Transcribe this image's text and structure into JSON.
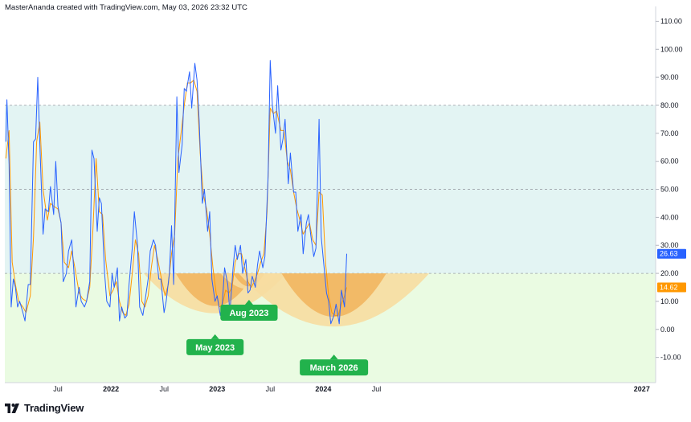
{
  "header": {
    "text": "MasterAnanda created with TradingView.com, May 03, 2026 23:32 UTC"
  },
  "branding": {
    "logo_text": "TradingView"
  },
  "colors": {
    "blue_line": "#2962ff",
    "orange_line": "#ff9800",
    "zone_band": "#e3f4f3",
    "low_zone": "#eafbe2",
    "bowl_outer": "#f7dda1",
    "bowl_inner": "#f1b35c",
    "badge_green": "#22b24c"
  },
  "chart_data": {
    "type": "line",
    "y_axis": {
      "ticks": [
        "110.00",
        "100.00",
        "90.00",
        "80.00",
        "70.00",
        "60.00",
        "50.00",
        "40.00",
        "30.00",
        "20.00",
        "10.00",
        "0.00",
        "-10.00"
      ],
      "ylim": [
        -19,
        113
      ]
    },
    "x_axis": {
      "ticks": [
        {
          "label": "Jul",
          "t": 2021.5,
          "bold": false
        },
        {
          "label": "2022",
          "t": 2022.0,
          "bold": true
        },
        {
          "label": "Jul",
          "t": 2022.5,
          "bold": false
        },
        {
          "label": "2023",
          "t": 2023.0,
          "bold": true
        },
        {
          "label": "Jul",
          "t": 2023.5,
          "bold": false
        },
        {
          "label": "2024",
          "t": 2024.0,
          "bold": true
        },
        {
          "label": "Jul",
          "t": 2024.5,
          "bold": false
        },
        {
          "label": "2027",
          "t": 2027.0,
          "bold": true
        }
      ]
    },
    "levels": [
      80,
      50,
      20
    ],
    "series": [
      {
        "color": "#2962ff",
        "last_value": "26.63",
        "points": [
          [
            2021.01,
            67
          ],
          [
            2021.02,
            82
          ],
          [
            2021.04,
            59
          ],
          [
            2021.06,
            8
          ],
          [
            2021.08,
            18
          ],
          [
            2021.1,
            15
          ],
          [
            2021.12,
            8
          ],
          [
            2021.14,
            10
          ],
          [
            2021.17,
            6
          ],
          [
            2021.19,
            3
          ],
          [
            2021.22,
            16
          ],
          [
            2021.24,
            16
          ],
          [
            2021.27,
            67
          ],
          [
            2021.29,
            68
          ],
          [
            2021.31,
            90
          ],
          [
            2021.33,
            66
          ],
          [
            2021.36,
            34
          ],
          [
            2021.38,
            43
          ],
          [
            2021.41,
            42
          ],
          [
            2021.43,
            51
          ],
          [
            2021.46,
            41
          ],
          [
            2021.48,
            60
          ],
          [
            2021.5,
            44
          ],
          [
            2021.53,
            38
          ],
          [
            2021.55,
            17
          ],
          [
            2021.58,
            20
          ],
          [
            2021.6,
            28
          ],
          [
            2021.63,
            32
          ],
          [
            2021.65,
            21
          ],
          [
            2021.67,
            8
          ],
          [
            2021.7,
            15
          ],
          [
            2021.72,
            10
          ],
          [
            2021.75,
            8
          ],
          [
            2021.77,
            10
          ],
          [
            2021.8,
            17
          ],
          [
            2021.82,
            64
          ],
          [
            2021.84,
            61
          ],
          [
            2021.87,
            35
          ],
          [
            2021.89,
            47
          ],
          [
            2021.91,
            45
          ],
          [
            2021.94,
            20
          ],
          [
            2021.96,
            10
          ],
          [
            2021.99,
            8
          ],
          [
            2022.01,
            20
          ],
          [
            2022.03,
            15
          ],
          [
            2022.06,
            22
          ],
          [
            2022.08,
            3
          ],
          [
            2022.1,
            8
          ],
          [
            2022.13,
            4
          ],
          [
            2022.15,
            5
          ],
          [
            2022.17,
            16
          ],
          [
            2022.2,
            29
          ],
          [
            2022.22,
            42
          ],
          [
            2022.25,
            30
          ],
          [
            2022.27,
            8
          ],
          [
            2022.3,
            5
          ],
          [
            2022.32,
            10
          ],
          [
            2022.35,
            18
          ],
          [
            2022.37,
            28
          ],
          [
            2022.4,
            32
          ],
          [
            2022.42,
            30
          ],
          [
            2022.45,
            18
          ],
          [
            2022.47,
            18
          ],
          [
            2022.5,
            6
          ],
          [
            2022.52,
            10
          ],
          [
            2022.55,
            20
          ],
          [
            2022.57,
            37
          ],
          [
            2022.59,
            16
          ],
          [
            2022.62,
            83
          ],
          [
            2022.64,
            56
          ],
          [
            2022.67,
            66
          ],
          [
            2022.69,
            86
          ],
          [
            2022.71,
            85
          ],
          [
            2022.74,
            92
          ],
          [
            2022.76,
            79
          ],
          [
            2022.79,
            95
          ],
          [
            2022.81,
            89
          ],
          [
            2022.83,
            75
          ],
          [
            2022.86,
            45
          ],
          [
            2022.88,
            50
          ],
          [
            2022.91,
            35
          ],
          [
            2022.93,
            42
          ],
          [
            2022.95,
            18
          ],
          [
            2022.98,
            10
          ],
          [
            2023.0,
            12
          ],
          [
            2023.03,
            5
          ],
          [
            2023.05,
            10
          ],
          [
            2023.07,
            22
          ],
          [
            2023.1,
            16
          ],
          [
            2023.12,
            6
          ],
          [
            2023.15,
            22
          ],
          [
            2023.17,
            30
          ],
          [
            2023.19,
            25
          ],
          [
            2023.22,
            30
          ],
          [
            2023.24,
            20
          ],
          [
            2023.27,
            25
          ],
          [
            2023.29,
            13
          ],
          [
            2023.31,
            14
          ],
          [
            2023.33,
            19
          ],
          [
            2023.36,
            15
          ],
          [
            2023.38,
            23
          ],
          [
            2023.4,
            28
          ],
          [
            2023.43,
            22
          ],
          [
            2023.45,
            26
          ],
          [
            2023.48,
            55
          ],
          [
            2023.5,
            96
          ],
          [
            2023.52,
            80
          ],
          [
            2023.55,
            70
          ],
          [
            2023.57,
            87
          ],
          [
            2023.6,
            64
          ],
          [
            2023.62,
            68
          ],
          [
            2023.64,
            75
          ],
          [
            2023.67,
            52
          ],
          [
            2023.69,
            63
          ],
          [
            2023.72,
            49
          ],
          [
            2023.74,
            49
          ],
          [
            2023.76,
            35
          ],
          [
            2023.79,
            41
          ],
          [
            2023.81,
            27
          ],
          [
            2023.84,
            38
          ],
          [
            2023.86,
            41
          ],
          [
            2023.88,
            34
          ],
          [
            2023.91,
            26
          ],
          [
            2023.93,
            29
          ],
          [
            2023.96,
            75
          ],
          [
            2023.98,
            33
          ],
          [
            2024.0,
            25
          ],
          [
            2024.03,
            13
          ],
          [
            2024.05,
            10
          ],
          [
            2024.07,
            2
          ],
          [
            2024.1,
            5
          ],
          [
            2024.12,
            9
          ],
          [
            2024.15,
            2
          ],
          [
            2024.17,
            14
          ],
          [
            2024.2,
            8
          ],
          [
            2024.22,
            27
          ]
        ]
      },
      {
        "color": "#ff9800",
        "last_value": "14.62",
        "points": [
          [
            2021.01,
            61
          ],
          [
            2021.04,
            71
          ],
          [
            2021.07,
            24
          ],
          [
            2021.1,
            16
          ],
          [
            2021.13,
            10
          ],
          [
            2021.17,
            8
          ],
          [
            2021.2,
            6
          ],
          [
            2021.24,
            12
          ],
          [
            2021.27,
            33
          ],
          [
            2021.3,
            67
          ],
          [
            2021.33,
            74
          ],
          [
            2021.36,
            50
          ],
          [
            2021.4,
            39
          ],
          [
            2021.43,
            45
          ],
          [
            2021.46,
            44
          ],
          [
            2021.5,
            43
          ],
          [
            2021.53,
            38
          ],
          [
            2021.56,
            24
          ],
          [
            2021.6,
            22
          ],
          [
            2021.63,
            28
          ],
          [
            2021.66,
            22
          ],
          [
            2021.7,
            13
          ],
          [
            2021.73,
            11
          ],
          [
            2021.77,
            10
          ],
          [
            2021.8,
            15
          ],
          [
            2021.83,
            36
          ],
          [
            2021.86,
            61
          ],
          [
            2021.89,
            42
          ],
          [
            2021.92,
            41
          ],
          [
            2021.95,
            25
          ],
          [
            2021.99,
            12
          ],
          [
            2022.02,
            14
          ],
          [
            2022.05,
            17
          ],
          [
            2022.08,
            10
          ],
          [
            2022.11,
            6
          ],
          [
            2022.14,
            5
          ],
          [
            2022.17,
            9
          ],
          [
            2022.2,
            20
          ],
          [
            2022.23,
            32
          ],
          [
            2022.26,
            27
          ],
          [
            2022.29,
            10
          ],
          [
            2022.32,
            8
          ],
          [
            2022.35,
            12
          ],
          [
            2022.38,
            22
          ],
          [
            2022.41,
            30
          ],
          [
            2022.44,
            25
          ],
          [
            2022.48,
            17
          ],
          [
            2022.51,
            12
          ],
          [
            2022.54,
            16
          ],
          [
            2022.57,
            27
          ],
          [
            2022.6,
            34
          ],
          [
            2022.63,
            61
          ],
          [
            2022.66,
            70
          ],
          [
            2022.69,
            80
          ],
          [
            2022.72,
            88
          ],
          [
            2022.75,
            88
          ],
          [
            2022.78,
            89
          ],
          [
            2022.81,
            85
          ],
          [
            2022.84,
            63
          ],
          [
            2022.87,
            48
          ],
          [
            2022.9,
            43
          ],
          [
            2022.93,
            34
          ],
          [
            2022.96,
            22
          ],
          [
            2022.99,
            13
          ],
          [
            2023.02,
            8
          ],
          [
            2023.05,
            9
          ],
          [
            2023.08,
            14
          ],
          [
            2023.11,
            13
          ],
          [
            2023.14,
            15
          ],
          [
            2023.17,
            24
          ],
          [
            2023.2,
            27
          ],
          [
            2023.23,
            27
          ],
          [
            2023.26,
            22
          ],
          [
            2023.29,
            17
          ],
          [
            2023.32,
            15
          ],
          [
            2023.35,
            17
          ],
          [
            2023.38,
            20
          ],
          [
            2023.41,
            24
          ],
          [
            2023.44,
            27
          ],
          [
            2023.47,
            42
          ],
          [
            2023.5,
            79
          ],
          [
            2023.53,
            77
          ],
          [
            2023.56,
            78
          ],
          [
            2023.6,
            71
          ],
          [
            2023.63,
            71
          ],
          [
            2023.66,
            60
          ],
          [
            2023.69,
            57
          ],
          [
            2023.72,
            49
          ],
          [
            2023.75,
            43
          ],
          [
            2023.78,
            39
          ],
          [
            2023.81,
            34
          ],
          [
            2023.84,
            36
          ],
          [
            2023.87,
            38
          ],
          [
            2023.9,
            32
          ],
          [
            2023.93,
            30
          ],
          [
            2023.96,
            49
          ],
          [
            2023.99,
            48
          ],
          [
            2024.02,
            24
          ],
          [
            2024.05,
            12
          ],
          [
            2024.08,
            6
          ],
          [
            2024.11,
            5
          ],
          [
            2024.14,
            5
          ],
          [
            2024.17,
            9
          ],
          [
            2024.2,
            12
          ],
          [
            2024.22,
            15
          ]
        ]
      }
    ],
    "annotations": [
      {
        "label": "May 2023",
        "t": 2022.98,
        "y_top": 20,
        "y_bottom": 5
      },
      {
        "label": "Aug 2023",
        "t": 2023.3,
        "y_top": 20,
        "y_bottom": 14
      },
      {
        "label": "March 2026",
        "t": 2024.1,
        "y_top": 20,
        "y_bottom": 0
      }
    ]
  }
}
